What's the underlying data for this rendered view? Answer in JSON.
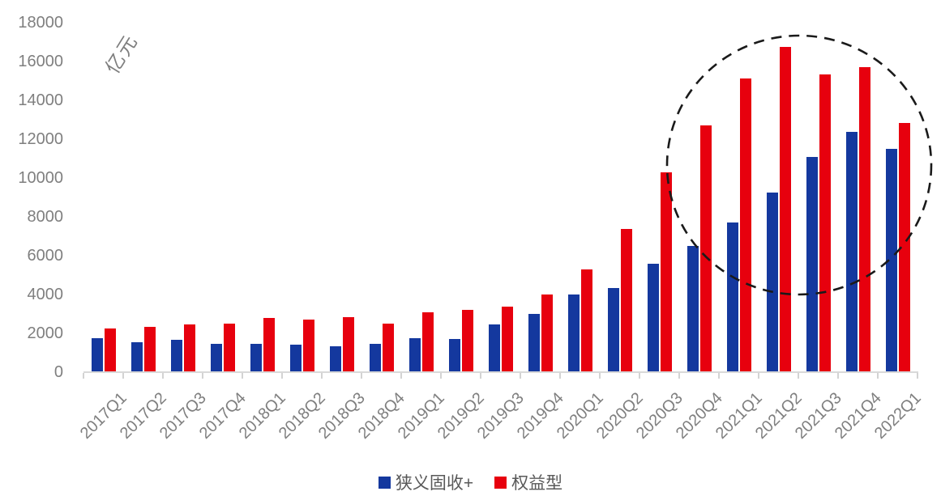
{
  "chart_data": {
    "type": "bar",
    "title": "",
    "xlabel": "",
    "ylabel": "亿元",
    "ylim": [
      0,
      18000
    ],
    "y_ticks": [
      0,
      2000,
      4000,
      6000,
      8000,
      10000,
      12000,
      14000,
      16000,
      18000
    ],
    "grid": "off",
    "legend_position": "bottom",
    "categories": [
      "2017Q1",
      "2017Q2",
      "2017Q3",
      "2017Q4",
      "2018Q1",
      "2018Q2",
      "2018Q3",
      "2018Q4",
      "2019Q1",
      "2019Q2",
      "2019Q3",
      "2019Q4",
      "2020Q1",
      "2020Q2",
      "2020Q3",
      "2020Q4",
      "2021Q1",
      "2021Q2",
      "2021Q3",
      "2021Q4",
      "2022Q1"
    ],
    "series": [
      {
        "name": "狭义固收+",
        "color": "#14389E",
        "values": [
          1700,
          1500,
          1630,
          1400,
          1400,
          1380,
          1300,
          1430,
          1700,
          1650,
          2400,
          2950,
          3950,
          4300,
          5550,
          6450,
          7650,
          9200,
          11050,
          12350,
          11450
        ]
      },
      {
        "name": "权益型",
        "color": "#E7000E",
        "values": [
          2200,
          2300,
          2400,
          2450,
          2750,
          2650,
          2800,
          2450,
          3050,
          3150,
          3350,
          3950,
          5250,
          7350,
          10250,
          12650,
          15100,
          16700,
          15300,
          15650,
          12800
        ]
      }
    ],
    "annotation": {
      "shape": "dashed-ellipse",
      "around": "2020Q4-2022Q1 bars",
      "color": "#1A1A1A"
    }
  },
  "style": {
    "background": "#FFFFFF",
    "axis_line_color": "#D9D9D9",
    "tick_label_color": "#7F7F7F",
    "legend_text_color": "#595959"
  }
}
